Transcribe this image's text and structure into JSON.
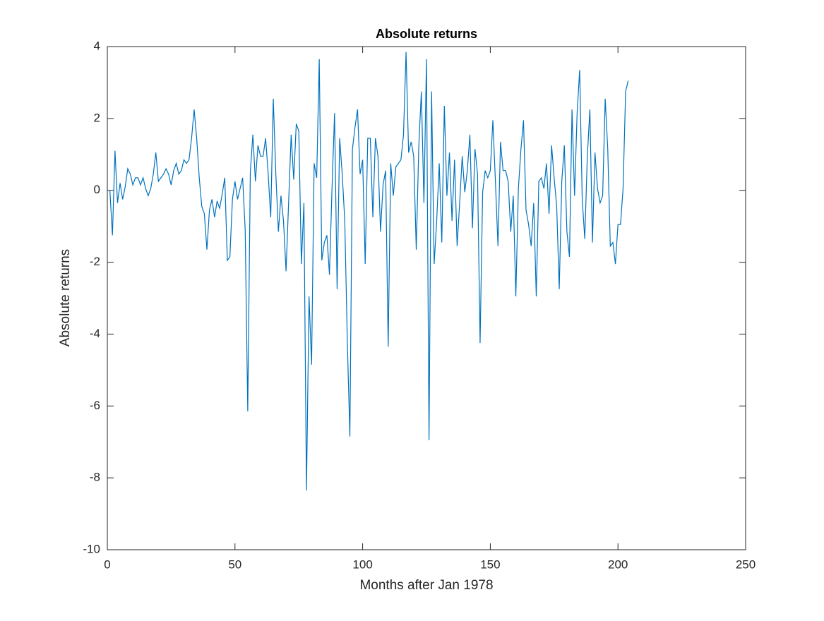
{
  "chart_data": {
    "type": "line",
    "title": "Absolute returns",
    "x_label": "Months after Jan 1978",
    "y_label": "Absolute returns",
    "x": [
      1,
      2,
      3,
      4,
      5,
      6,
      7,
      8,
      9,
      10,
      11,
      12,
      13,
      14,
      15,
      16,
      17,
      18,
      19,
      20,
      21,
      22,
      23,
      24,
      25,
      26,
      27,
      28,
      29,
      30,
      31,
      32,
      33,
      34,
      35,
      36,
      37,
      38,
      39,
      40,
      41,
      42,
      43,
      44,
      45,
      46,
      47,
      48,
      49,
      50,
      51,
      52,
      53,
      54,
      55,
      56,
      57,
      58,
      59,
      60,
      61,
      62,
      63,
      64,
      65,
      66,
      67,
      68,
      69,
      70,
      71,
      72,
      73,
      74,
      75,
      76,
      77,
      78,
      79,
      80,
      81,
      82,
      83,
      84,
      85,
      86,
      87,
      88,
      89,
      90,
      91,
      92,
      93,
      94,
      95,
      96,
      97,
      98,
      99,
      100,
      101,
      102,
      103,
      104,
      105,
      106,
      107,
      108,
      109,
      110,
      111,
      112,
      113,
      114,
      115,
      116,
      117,
      118,
      119,
      120,
      121,
      122,
      123,
      124,
      125,
      126,
      127,
      128,
      129,
      130,
      131,
      132,
      133,
      134,
      135,
      136,
      137,
      138,
      139,
      140,
      141,
      142,
      143,
      144,
      145,
      146,
      147,
      148,
      149,
      150,
      151,
      152,
      153,
      154,
      155,
      156,
      157,
      158,
      159,
      160,
      161,
      162,
      163,
      164,
      165,
      166,
      167,
      168,
      169,
      170,
      171,
      172,
      173,
      174,
      175,
      176,
      177,
      178,
      179,
      180,
      181,
      182,
      183,
      184,
      185,
      186,
      187,
      188,
      189,
      190,
      191,
      192,
      193,
      194,
      195,
      196,
      197,
      198,
      199,
      200,
      201,
      202,
      203,
      204
    ],
    "series": [
      {
        "name": "Absolute returns",
        "color": "#0072bd",
        "values": [
          0,
          -1.25,
          1.1,
          -0.35,
          0.2,
          -0.25,
          0.1,
          0.6,
          0.45,
          0.15,
          0.35,
          0.35,
          0.15,
          0.35,
          0.05,
          -0.15,
          0.05,
          0.45,
          1.05,
          0.25,
          0.35,
          0.45,
          0.6,
          0.45,
          0.15,
          0.55,
          0.75,
          0.45,
          0.55,
          0.85,
          0.75,
          0.85,
          1.45,
          2.25,
          1.45,
          0.35,
          -0.45,
          -0.65,
          -1.65,
          -0.55,
          -0.25,
          -0.75,
          -0.3,
          -0.5,
          -0.1,
          0.35,
          -1.95,
          -1.85,
          -0.25,
          0.25,
          -0.25,
          0.05,
          0.35,
          -1.1,
          -6.15,
          0.5,
          1.55,
          0.25,
          1.25,
          0.95,
          0.95,
          1.45,
          0.45,
          -0.75,
          2.55,
          0.45,
          -1.15,
          -0.15,
          -0.85,
          -2.25,
          -0.35,
          1.55,
          0.3,
          1.85,
          1.65,
          -2.05,
          -0.35,
          -8.35,
          -2.95,
          -4.85,
          0.75,
          0.35,
          3.65,
          -1.95,
          -1.45,
          -1.25,
          -2.35,
          0.05,
          2.15,
          -2.75,
          1.45,
          0.45,
          -0.85,
          -4.2,
          -6.85,
          1.15,
          1.75,
          2.25,
          0.45,
          0.85,
          -2.05,
          1.45,
          1.45,
          -0.75,
          1.45,
          0.95,
          -1.15,
          0.15,
          0.55,
          -4.35,
          0.75,
          -0.15,
          0.65,
          0.75,
          0.85,
          1.55,
          3.85,
          1.05,
          1.35,
          0.95,
          -1.65,
          1.25,
          2.75,
          -0.35,
          3.65,
          -6.95,
          2.75,
          -2.05,
          -0.85,
          0.75,
          -1.45,
          2.35,
          -0.15,
          1.05,
          -0.85,
          0.85,
          -1.55,
          -0.35,
          0.95,
          -0.05,
          0.55,
          1.55,
          -1.05,
          1.15,
          0.45,
          -4.25,
          -0.05,
          0.55,
          0.35,
          0.55,
          1.95,
          0.25,
          -1.55,
          1.35,
          0.55,
          0.55,
          0.25,
          -1.15,
          -0.15,
          -2.95,
          0.05,
          1.15,
          1.95,
          -0.55,
          -0.95,
          -1.55,
          -0.35,
          -2.95,
          0.25,
          0.35,
          0.05,
          0.75,
          -0.65,
          1.25,
          0.35,
          -0.45,
          -2.75,
          0.25,
          1.25,
          -1.15,
          -1.85,
          2.25,
          -0.15,
          2.15,
          3.35,
          -0.25,
          -1.35,
          0.95,
          2.25,
          -1.45,
          1.05,
          0.05,
          -0.35,
          -0.15,
          2.55,
          1.15,
          -1.55,
          -1.45,
          -2.05,
          -0.95,
          -0.95,
          0.05,
          2.75,
          3.05
        ]
      }
    ],
    "xlim": [
      0,
      250
    ],
    "xticks": [
      0,
      50,
      100,
      150,
      200,
      250
    ],
    "ylim": [
      -10,
      4
    ],
    "yticks": [
      -10,
      -8,
      -6,
      -4,
      -2,
      0,
      2,
      4
    ]
  }
}
